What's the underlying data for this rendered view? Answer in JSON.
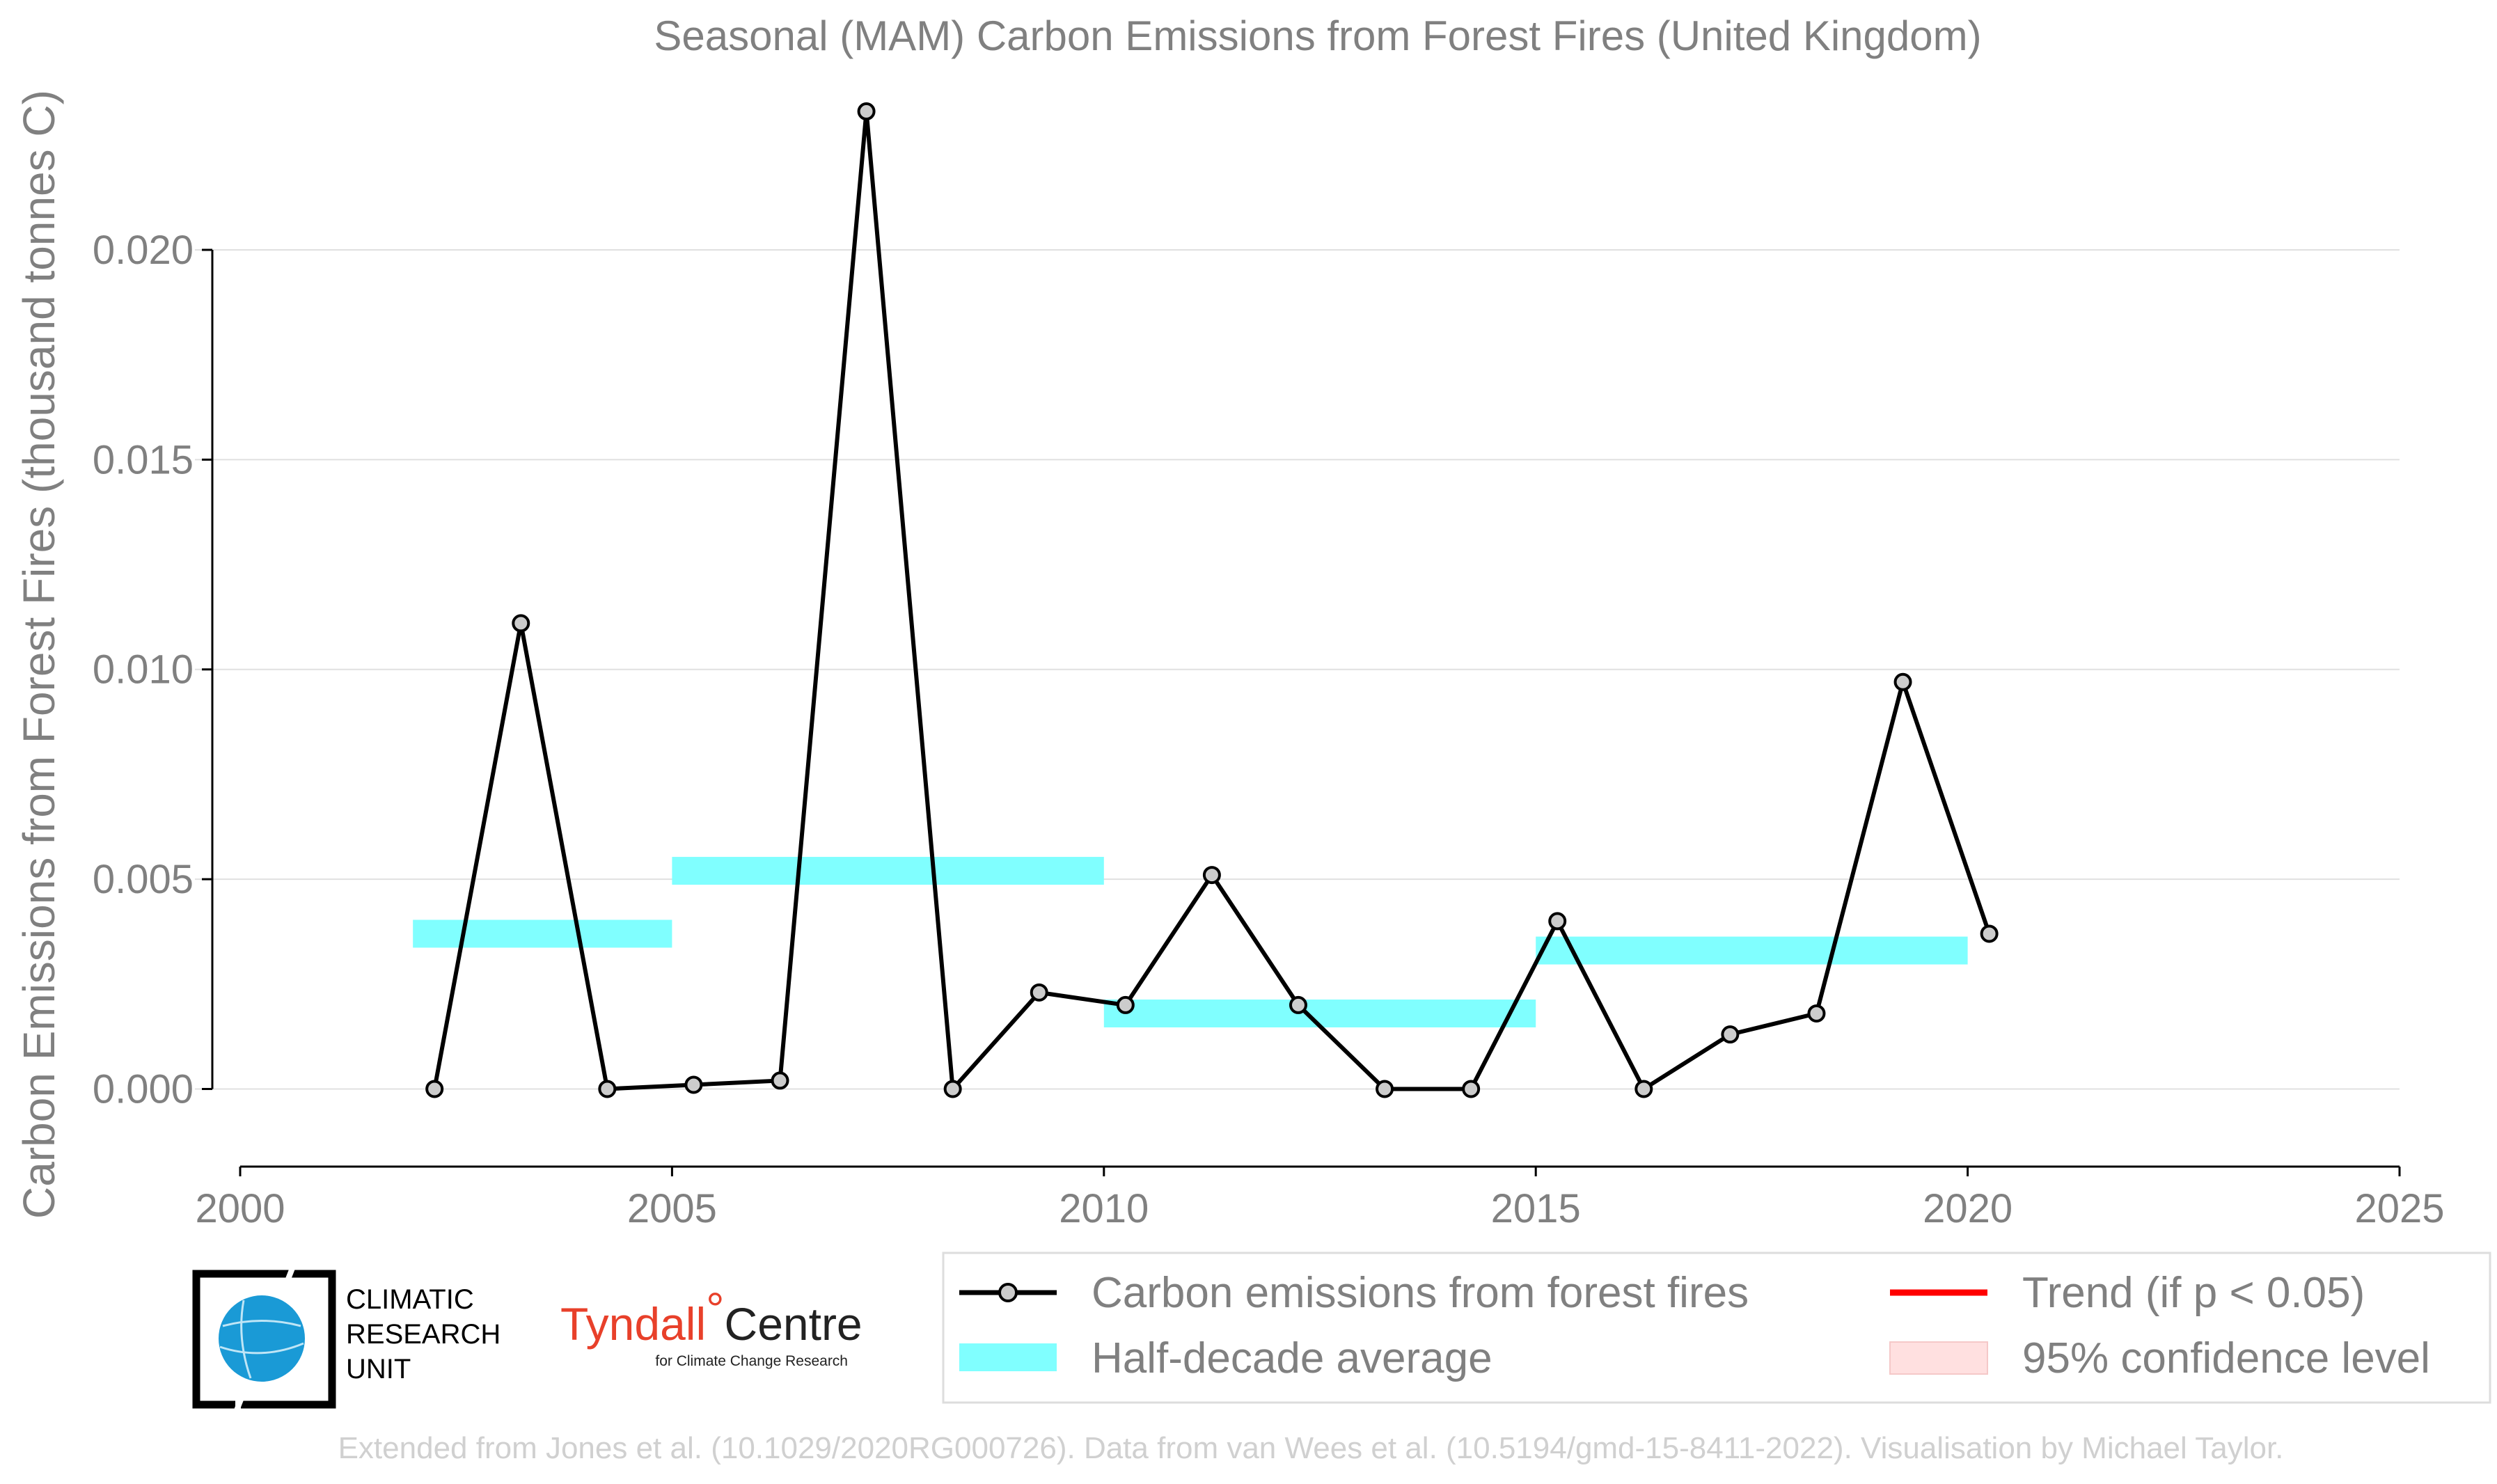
{
  "chart_data": {
    "type": "line",
    "title": "Seasonal (MAM) Carbon Emissions from Forest Fires (United Kingdom)",
    "xlabel": "",
    "ylabel": "Carbon Emissions from Forest Fires (thousand tonnes C)",
    "xlim": [
      2000,
      2025
    ],
    "ylim": [
      -0.00185,
      0.0235
    ],
    "x_ticks": [
      "2000",
      "2005",
      "2010",
      "2015",
      "2020",
      "2025"
    ],
    "y_ticks": [
      "0.000",
      "0.005",
      "0.010",
      "0.015",
      "0.020"
    ],
    "grid": "horizontal",
    "series": [
      {
        "name": "Carbon emissions from forest fires",
        "color": "#000000",
        "marker_fill": "#cccccc",
        "x": [
          2002.25,
          2003.25,
          2004.25,
          2005.25,
          2006.25,
          2007.25,
          2008.25,
          2009.25,
          2010.25,
          2011.25,
          2012.25,
          2013.25,
          2014.25,
          2015.25,
          2016.25,
          2017.25,
          2018.25,
          2019.25,
          2020.25
        ],
        "y": [
          0.0,
          0.0111,
          0.0,
          0.0001,
          0.0002,
          0.0233,
          0.0,
          0.0023,
          0.002,
          0.0051,
          0.002,
          0.0,
          0.0,
          0.004,
          0.0,
          0.0013,
          0.0018,
          0.0097,
          0.0037
        ]
      },
      {
        "name": "Half-decade average",
        "color": "#80ffff",
        "segments": [
          {
            "x0": 2002,
            "x1": 2005,
            "y": 0.0037
          },
          {
            "x0": 2005,
            "x1": 2010,
            "y": 0.0052
          },
          {
            "x0": 2010,
            "x1": 2015,
            "y": 0.0018
          },
          {
            "x0": 2015,
            "x1": 2020,
            "y": 0.0033
          }
        ]
      }
    ],
    "legend": {
      "placement": "bottom",
      "entries": [
        {
          "label": "Carbon emissions from forest fires",
          "kind": "line-marker",
          "color": "#000000"
        },
        {
          "label": "Trend (if p < 0.05)",
          "kind": "line",
          "color": "#ff0000"
        },
        {
          "label": "Half-decade average",
          "kind": "band",
          "color": "#80ffff"
        },
        {
          "label": "95% confidence level",
          "kind": "patch",
          "color": "#ffe0e0"
        }
      ]
    },
    "credit": "Extended from Jones et al. (10.1029/2020RG000726). Data from van Wees et al. (10.5194/gmd-15-8411-2022). Visualisation by Michael Taylor."
  },
  "logos": {
    "cru": {
      "lines": [
        "CLIMATIC",
        "RESEARCH",
        "UNIT"
      ],
      "globe_color": "#1a9ad6"
    },
    "tyndall": {
      "name": "Tyndall",
      "degree": "°",
      "name2": "Centre",
      "subtitle": "for Climate Change Research"
    }
  }
}
